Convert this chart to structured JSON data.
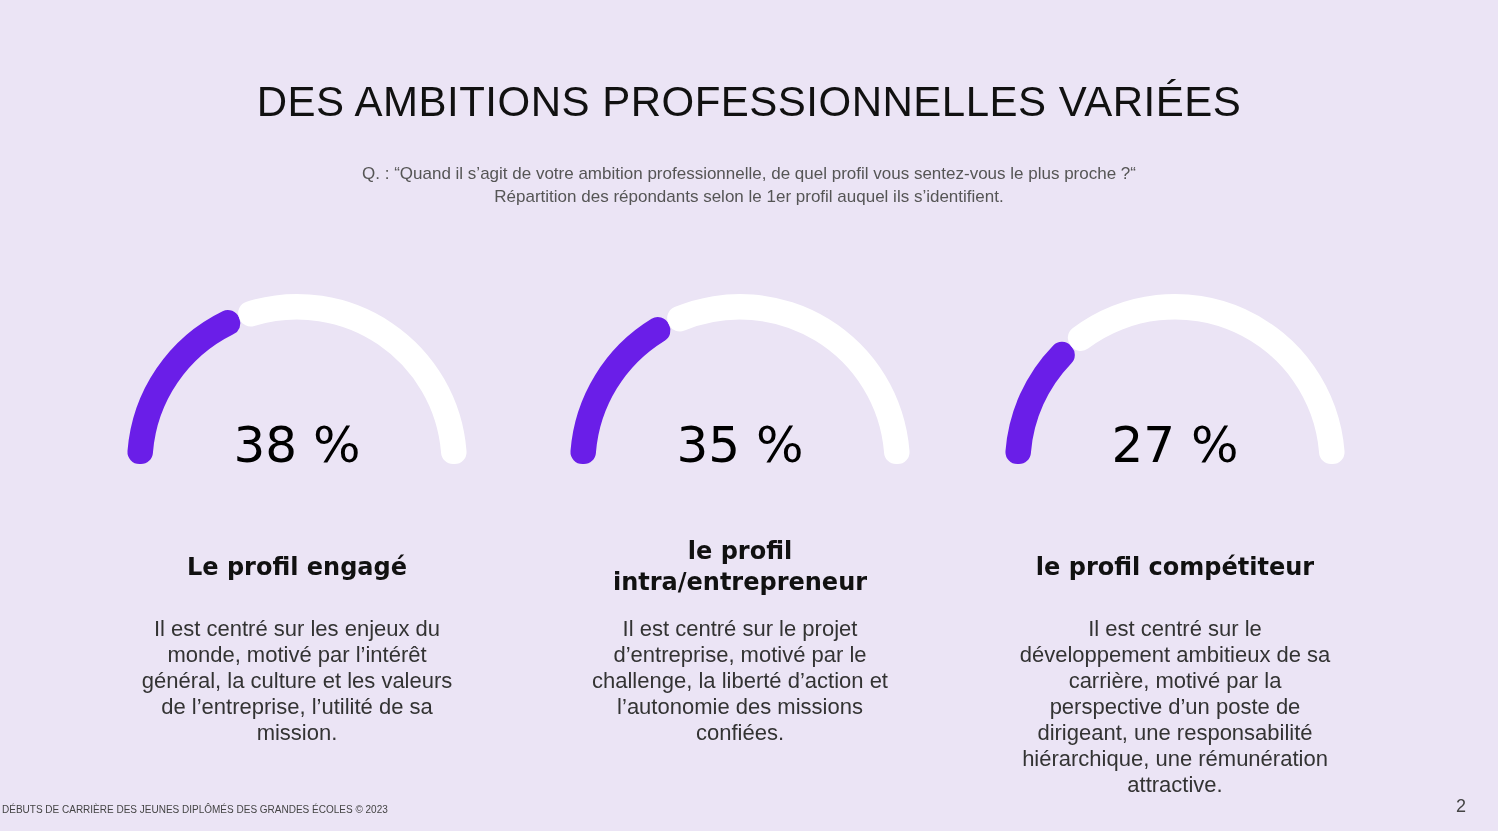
{
  "chart_data": [
    {
      "type": "other",
      "title": "DES AMBITIONS PROFESSIONNELLES VARIÉES",
      "subtitle": "Q. : “Quand il s’agit de votre ambition professionnelle, de quel profil vous sentez-vous le plus proche ?“\nRépartition des répondants selon le 1er profil auquel ils s’identifient.",
      "annotations": [
        "DÉBUTS DE CARRIÈRE DES JEUNES DIPLÔMÉS DES GRANDES ÉCOLES © 2023",
        "2"
      ]
    },
    {
      "type": "donut",
      "title": "Le profil engagé",
      "subtitle": "Il est centré sur les enjeux du monde, motivé par l’intérêt général, la culture et les valeurs de l’entreprise, l’utilité de sa mission.",
      "categories": [
        null,
        null
      ],
      "values": [
        38,
        62
      ],
      "colors": [
        "#6a1ee8",
        "#ffffff"
      ],
      "annotations": [
        "38 %"
      ]
    },
    {
      "type": "donut",
      "title": "le profil intra/entrepreneur",
      "subtitle": "Il est centré sur le projet d’entreprise, motivé par le challenge, la liberté d’action et l’autonomie des missions confiées.",
      "categories": [
        null,
        null
      ],
      "values": [
        35,
        65
      ],
      "colors": [
        "#6a1ee8",
        "#ffffff"
      ],
      "annotations": [
        "35 %"
      ]
    },
    {
      "type": "donut",
      "title": "le profil compétiteur",
      "subtitle": "Il est centré sur le développement ambitieux de sa carrière, motivé par la perspective d’un poste de dirigeant, une responsabilité hiérarchique, une rémunération attractive.",
      "categories": [
        null,
        null
      ],
      "values": [
        27,
        73
      ],
      "colors": [
        "#6a1ee8",
        "#ffffff"
      ],
      "annotations": [
        "27 %"
      ]
    }
  ]
}
